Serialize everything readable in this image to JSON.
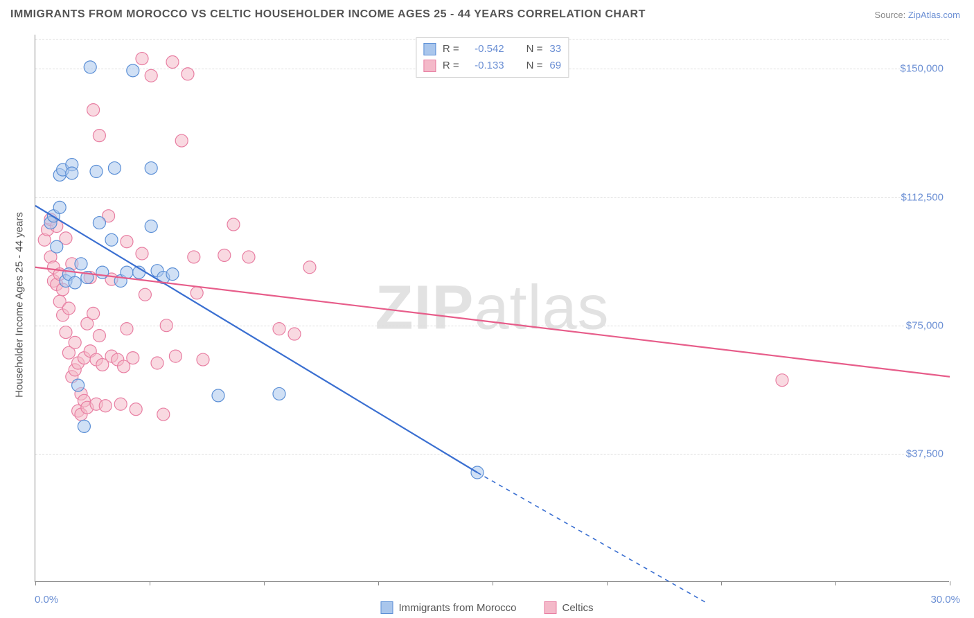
{
  "title": "IMMIGRANTS FROM MOROCCO VS CELTIC HOUSEHOLDER INCOME AGES 25 - 44 YEARS CORRELATION CHART",
  "source_label": "Source:",
  "source_name": "ZipAtlas.com",
  "watermark": {
    "part1": "ZIP",
    "part2": "atlas"
  },
  "yaxis_title": "Householder Income Ages 25 - 44 years",
  "chart": {
    "type": "scatter",
    "xlim": [
      0.0,
      30.0
    ],
    "ylim": [
      0,
      160000
    ],
    "x_tick_positions": [
      0,
      3.75,
      7.5,
      11.25,
      15,
      18.75,
      22.5,
      26.25,
      30
    ],
    "x_tick_labels_shown": {
      "first": "0.0%",
      "last": "30.0%"
    },
    "y_gridlines": [
      37500,
      75000,
      112500,
      150000
    ],
    "y_tick_labels": [
      "$37,500",
      "$75,000",
      "$112,500",
      "$150,000"
    ],
    "background_color": "#ffffff",
    "grid_color": "#dddddd",
    "axis_color": "#888888",
    "label_color": "#6b8fd4",
    "series": [
      {
        "name": "Immigrants from Morocco",
        "color_fill": "#a9c6ec",
        "color_stroke": "#5b8fd6",
        "line_color": "#3a6fd1",
        "marker_radius": 9,
        "marker_opacity": 0.55,
        "R": "-0.542",
        "N": "33",
        "trend": {
          "x1": 0,
          "y1": 110000,
          "x2": 14.5,
          "y2": 32000,
          "extend_x2": 22,
          "extend_y2": -6000
        },
        "points": [
          [
            0.5,
            105000
          ],
          [
            0.6,
            107000
          ],
          [
            0.7,
            98000
          ],
          [
            0.8,
            109500
          ],
          [
            0.8,
            119000
          ],
          [
            0.9,
            120500
          ],
          [
            1.0,
            88000
          ],
          [
            1.1,
            90000
          ],
          [
            1.2,
            122000
          ],
          [
            1.2,
            119500
          ],
          [
            1.3,
            87500
          ],
          [
            1.4,
            57500
          ],
          [
            1.5,
            93000
          ],
          [
            1.6,
            45500
          ],
          [
            1.7,
            89000
          ],
          [
            1.8,
            150500
          ],
          [
            2.0,
            120000
          ],
          [
            2.1,
            105000
          ],
          [
            2.2,
            90500
          ],
          [
            2.5,
            100000
          ],
          [
            2.6,
            121000
          ],
          [
            2.8,
            88000
          ],
          [
            3.0,
            90500
          ],
          [
            3.2,
            149500
          ],
          [
            3.4,
            90500
          ],
          [
            3.8,
            104000
          ],
          [
            4.0,
            91000
          ],
          [
            4.2,
            89000
          ],
          [
            4.5,
            90000
          ],
          [
            3.8,
            121000
          ],
          [
            6.0,
            54500
          ],
          [
            8.0,
            55000
          ],
          [
            14.5,
            32000
          ]
        ]
      },
      {
        "name": "Celtics",
        "color_fill": "#f4b9c9",
        "color_stroke": "#e87ea2",
        "line_color": "#e75d8a",
        "marker_radius": 9,
        "marker_opacity": 0.55,
        "R": "-0.133",
        "N": "69",
        "trend": {
          "x1": 0,
          "y1": 92000,
          "x2": 30,
          "y2": 60000
        },
        "points": [
          [
            0.3,
            100000
          ],
          [
            0.4,
            103000
          ],
          [
            0.5,
            106000
          ],
          [
            0.5,
            95000
          ],
          [
            0.6,
            88000
          ],
          [
            0.6,
            92000
          ],
          [
            0.7,
            104000
          ],
          [
            0.7,
            87000
          ],
          [
            0.8,
            82000
          ],
          [
            0.8,
            90000
          ],
          [
            0.9,
            78000
          ],
          [
            0.9,
            85500
          ],
          [
            1.0,
            100500
          ],
          [
            1.0,
            73000
          ],
          [
            1.1,
            67000
          ],
          [
            1.1,
            80000
          ],
          [
            1.2,
            93000
          ],
          [
            1.2,
            60000
          ],
          [
            1.3,
            62000
          ],
          [
            1.3,
            70000
          ],
          [
            1.4,
            50000
          ],
          [
            1.4,
            64000
          ],
          [
            1.5,
            49000
          ],
          [
            1.5,
            55000
          ],
          [
            1.6,
            65500
          ],
          [
            1.6,
            53000
          ],
          [
            1.7,
            75500
          ],
          [
            1.7,
            51000
          ],
          [
            1.8,
            89000
          ],
          [
            1.8,
            67500
          ],
          [
            1.9,
            78500
          ],
          [
            1.9,
            138000
          ],
          [
            2.0,
            52000
          ],
          [
            2.0,
            65000
          ],
          [
            2.1,
            130500
          ],
          [
            2.1,
            72000
          ],
          [
            2.2,
            63500
          ],
          [
            2.3,
            51500
          ],
          [
            2.4,
            107000
          ],
          [
            2.5,
            66000
          ],
          [
            2.5,
            88500
          ],
          [
            2.7,
            65000
          ],
          [
            2.8,
            52000
          ],
          [
            2.9,
            63000
          ],
          [
            3.0,
            74000
          ],
          [
            3.0,
            99500
          ],
          [
            3.2,
            65500
          ],
          [
            3.3,
            50500
          ],
          [
            3.5,
            153000
          ],
          [
            3.5,
            96000
          ],
          [
            3.6,
            84000
          ],
          [
            3.8,
            148000
          ],
          [
            4.0,
            64000
          ],
          [
            4.2,
            49000
          ],
          [
            4.3,
            75000
          ],
          [
            4.5,
            152000
          ],
          [
            4.6,
            66000
          ],
          [
            4.8,
            129000
          ],
          [
            5.0,
            148500
          ],
          [
            5.2,
            95000
          ],
          [
            5.3,
            84500
          ],
          [
            5.5,
            65000
          ],
          [
            6.2,
            95500
          ],
          [
            6.5,
            104500
          ],
          [
            7.0,
            95000
          ],
          [
            8.0,
            74000
          ],
          [
            8.5,
            72500
          ],
          [
            9.0,
            92000
          ],
          [
            24.5,
            59000
          ]
        ]
      }
    ]
  },
  "legend_top": [
    {
      "series_idx": 0,
      "R_label": "R =",
      "N_label": "N ="
    },
    {
      "series_idx": 1,
      "R_label": "R =",
      "N_label": "N ="
    }
  ],
  "legend_bottom": [
    {
      "series_idx": 0
    },
    {
      "series_idx": 1
    }
  ]
}
